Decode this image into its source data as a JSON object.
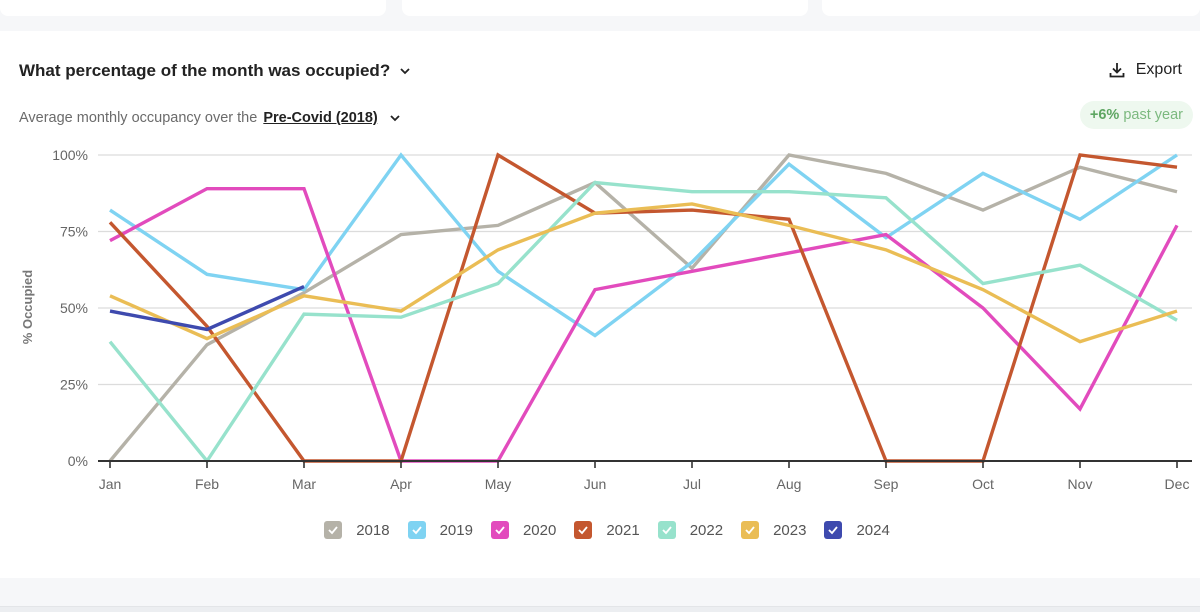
{
  "header": {
    "title": "What percentage of the month was occupied?",
    "export_label": "Export",
    "subtitle_prefix": "Average monthly occupancy over the",
    "period": "Pre-Covid (2018)",
    "badge_value": "+6%",
    "badge_text": "past year"
  },
  "colors": {
    "2018": "#b5b2a8",
    "2019": "#7fd3f2",
    "2020": "#e24bbd",
    "2021": "#c4572f",
    "2022": "#97e2cc",
    "2023": "#eabd55",
    "2024": "#3e4aae"
  },
  "chart_data": {
    "type": "line",
    "title": "What percentage of the month was occupied?",
    "xlabel": "",
    "ylabel": "% Occupied",
    "ylim": [
      0,
      100
    ],
    "yticks": [
      "0%",
      "25%",
      "50%",
      "75%",
      "100%"
    ],
    "ytick_values": [
      0,
      25,
      50,
      75,
      100
    ],
    "grid": true,
    "legend_position": "bottom-center",
    "categories": [
      "Jan",
      "Feb",
      "Mar",
      "Apr",
      "May",
      "Jun",
      "Jul",
      "Aug",
      "Sep",
      "Oct",
      "Nov",
      "Dec"
    ],
    "series": [
      {
        "name": "2018",
        "values": [
          0,
          38,
          55,
          74,
          77,
          91,
          63,
          100,
          94,
          82,
          96,
          88
        ]
      },
      {
        "name": "2019",
        "values": [
          82,
          61,
          56,
          100,
          62,
          41,
          65,
          97,
          73,
          94,
          79,
          100
        ]
      },
      {
        "name": "2020",
        "values": [
          72,
          89,
          89,
          0,
          0,
          56,
          62,
          68,
          74,
          50,
          17,
          77
        ]
      },
      {
        "name": "2021",
        "values": [
          78,
          44,
          0,
          0,
          100,
          81,
          82,
          79,
          0,
          0,
          100,
          96
        ]
      },
      {
        "name": "2022",
        "values": [
          39,
          0,
          48,
          47,
          58,
          91,
          88,
          88,
          86,
          58,
          64,
          46
        ]
      },
      {
        "name": "2023",
        "values": [
          54,
          40,
          54,
          49,
          69,
          81,
          84,
          77,
          69,
          56,
          39,
          49
        ]
      },
      {
        "name": "2024",
        "values": [
          49,
          43,
          57
        ]
      }
    ]
  }
}
